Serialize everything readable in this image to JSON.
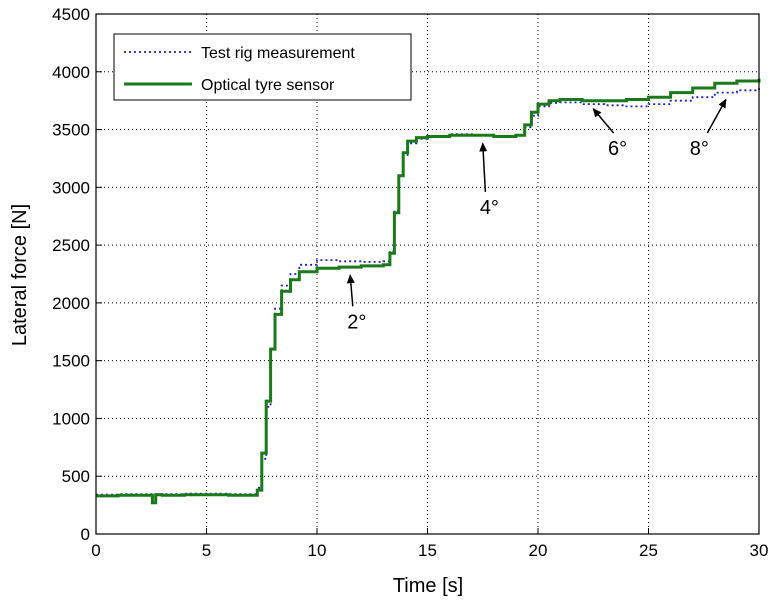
{
  "chart_data": {
    "type": "line",
    "xlabel": "Time [s]",
    "ylabel": "Lateral force [N]",
    "xlim": [
      0,
      30
    ],
    "ylim": [
      0,
      4500
    ],
    "xticks": [
      0,
      5,
      10,
      15,
      20,
      25,
      30
    ],
    "yticks": [
      0,
      500,
      1000,
      1500,
      2000,
      2500,
      3000,
      3500,
      4000,
      4500
    ],
    "grid": true,
    "legend_position": "top-left",
    "series": [
      {
        "name": "Test rig measurement",
        "style": "dotted",
        "color": "#1f1fcc",
        "points": [
          [
            0,
            340
          ],
          [
            1,
            345
          ],
          [
            2,
            345
          ],
          [
            2.6,
            345
          ],
          [
            3,
            345
          ],
          [
            4,
            350
          ],
          [
            5,
            350
          ],
          [
            6,
            345
          ],
          [
            7,
            345
          ],
          [
            7.3,
            400
          ],
          [
            7.5,
            650
          ],
          [
            7.7,
            1100
          ],
          [
            7.9,
            1600
          ],
          [
            8.1,
            1950
          ],
          [
            8.4,
            2150
          ],
          [
            8.8,
            2250
          ],
          [
            9.2,
            2330
          ],
          [
            10,
            2370
          ],
          [
            11,
            2360
          ],
          [
            12,
            2355
          ],
          [
            13,
            2360
          ],
          [
            13.3,
            2450
          ],
          [
            13.5,
            2800
          ],
          [
            13.7,
            3100
          ],
          [
            13.9,
            3280
          ],
          [
            14.1,
            3380
          ],
          [
            14.5,
            3420
          ],
          [
            15,
            3440
          ],
          [
            16,
            3460
          ],
          [
            17,
            3450
          ],
          [
            18,
            3440
          ],
          [
            19,
            3450
          ],
          [
            19.4,
            3520
          ],
          [
            19.7,
            3620
          ],
          [
            20,
            3700
          ],
          [
            20.5,
            3730
          ],
          [
            21,
            3735
          ],
          [
            22,
            3720
          ],
          [
            23,
            3710
          ],
          [
            24,
            3700
          ],
          [
            25,
            3720
          ],
          [
            26,
            3750
          ],
          [
            27,
            3780
          ],
          [
            28,
            3820
          ],
          [
            29,
            3840
          ],
          [
            30,
            3860
          ]
        ]
      },
      {
        "name": "Optical tyre sensor",
        "style": "solid",
        "color": "#1a7a1a",
        "points": [
          [
            0,
            330
          ],
          [
            1,
            335
          ],
          [
            2,
            335
          ],
          [
            2.55,
            270
          ],
          [
            2.7,
            340
          ],
          [
            3,
            335
          ],
          [
            4,
            340
          ],
          [
            5,
            340
          ],
          [
            6,
            335
          ],
          [
            7,
            335
          ],
          [
            7.3,
            380
          ],
          [
            7.5,
            700
          ],
          [
            7.7,
            1150
          ],
          [
            7.9,
            1600
          ],
          [
            8.1,
            1900
          ],
          [
            8.4,
            2100
          ],
          [
            8.8,
            2200
          ],
          [
            9.2,
            2270
          ],
          [
            10,
            2300
          ],
          [
            11,
            2310
          ],
          [
            12,
            2320
          ],
          [
            13,
            2330
          ],
          [
            13.3,
            2430
          ],
          [
            13.5,
            2780
          ],
          [
            13.7,
            3100
          ],
          [
            13.9,
            3300
          ],
          [
            14.1,
            3400
          ],
          [
            14.5,
            3430
          ],
          [
            15,
            3440
          ],
          [
            16,
            3450
          ],
          [
            17,
            3450
          ],
          [
            18,
            3440
          ],
          [
            19,
            3450
          ],
          [
            19.4,
            3540
          ],
          [
            19.7,
            3650
          ],
          [
            20,
            3720
          ],
          [
            20.5,
            3750
          ],
          [
            21,
            3760
          ],
          [
            22,
            3750
          ],
          [
            23,
            3750
          ],
          [
            24,
            3760
          ],
          [
            25,
            3780
          ],
          [
            26,
            3820
          ],
          [
            27,
            3860
          ],
          [
            28,
            3900
          ],
          [
            29,
            3920
          ],
          [
            30,
            3940
          ]
        ]
      }
    ],
    "annotations": [
      {
        "text": "2°",
        "x": 11.8,
        "y": 1780,
        "arrow_to": [
          11.5,
          2240
        ]
      },
      {
        "text": "4°",
        "x": 17.8,
        "y": 2770,
        "arrow_to": [
          17.5,
          3380
        ]
      },
      {
        "text": "6°",
        "x": 23.6,
        "y": 3280,
        "arrow_to": [
          22.5,
          3680
        ]
      },
      {
        "text": "8°",
        "x": 27.3,
        "y": 3280,
        "arrow_to": [
          28.5,
          3760
        ]
      }
    ]
  }
}
